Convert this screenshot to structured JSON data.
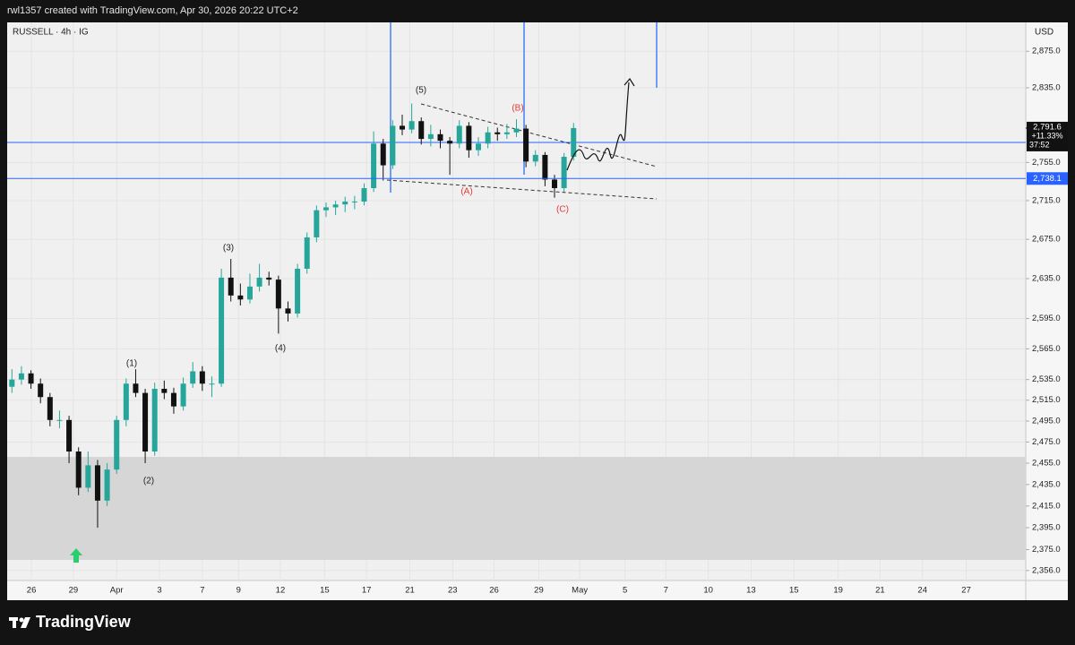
{
  "page": {
    "header": "rwl1357 created with TradingView.com, Apr 30, 2026 20:22 UTC+2",
    "brand": "TradingView"
  },
  "chart_data": {
    "type": "candlestick",
    "title": "RUSSELL · 4h · IG",
    "currency": "USD",
    "log_scale": true,
    "grid": true,
    "up_color": "#26a69a",
    "down_color": "#111111",
    "xlim": [
      0,
      214
    ],
    "ylim": [
      2347,
      2907
    ],
    "x": [
      1,
      3,
      5,
      7,
      9,
      11,
      13,
      15,
      17,
      19,
      21,
      23,
      25,
      27,
      29,
      31,
      33,
      35,
      37,
      39,
      41,
      43,
      45,
      47,
      49,
      51,
      53,
      55,
      57,
      59,
      61,
      63,
      65,
      67,
      69,
      71,
      73,
      75,
      77,
      79,
      81,
      83,
      85,
      87,
      89,
      91,
      93,
      95,
      97,
      99,
      101,
      103,
      105,
      107,
      109,
      111,
      113,
      115,
      117,
      119
    ],
    "open": [
      2528,
      2535,
      2541,
      2531,
      2518,
      2496,
      2496,
      2466,
      2432,
      2453,
      2420,
      2449,
      2496,
      2531,
      2522,
      2466,
      2526,
      2522,
      2509,
      2531,
      2543,
      2531,
      2531,
      2636,
      2618,
      2614,
      2627,
      2636,
      2634,
      2605,
      2600,
      2645,
      2677,
      2705,
      2708,
      2711,
      2714,
      2714,
      2728,
      2775,
      2752,
      2794,
      2790,
      2799,
      2780,
      2785,
      2778,
      2775,
      2794,
      2768,
      2775,
      2787,
      2785,
      2787,
      2791,
      2756,
      2763,
      2737,
      2728,
      2761
    ],
    "high": [
      2545,
      2548,
      2544,
      2536,
      2522,
      2505,
      2500,
      2470,
      2466,
      2458,
      2455,
      2500,
      2536,
      2545,
      2526,
      2532,
      2534,
      2527,
      2537,
      2552,
      2548,
      2538,
      2645,
      2655,
      2630,
      2640,
      2650,
      2642,
      2638,
      2612,
      2650,
      2682,
      2710,
      2713,
      2715,
      2719,
      2720,
      2733,
      2788,
      2780,
      2800,
      2806,
      2818,
      2803,
      2795,
      2790,
      2782,
      2800,
      2798,
      2782,
      2793,
      2792,
      2796,
      2801,
      2795,
      2768,
      2766,
      2742,
      2765,
      2797
    ],
    "low": [
      2522,
      2530,
      2526,
      2512,
      2490,
      2488,
      2455,
      2425,
      2428,
      2395,
      2415,
      2445,
      2490,
      2518,
      2455,
      2462,
      2516,
      2502,
      2505,
      2527,
      2524,
      2518,
      2528,
      2612,
      2608,
      2610,
      2622,
      2628,
      2580,
      2592,
      2596,
      2640,
      2672,
      2698,
      2700,
      2703,
      2706,
      2710,
      2724,
      2736,
      2748,
      2784,
      2786,
      2774,
      2772,
      2770,
      2742,
      2770,
      2760,
      2762,
      2770,
      2778,
      2780,
      2782,
      2750,
      2751,
      2730,
      2718,
      2724,
      2757
    ],
    "close": [
      2535,
      2541,
      2531,
      2518,
      2496,
      2496,
      2466,
      2432,
      2453,
      2420,
      2449,
      2496,
      2531,
      2522,
      2466,
      2526,
      2522,
      2509,
      2531,
      2543,
      2531,
      2531,
      2636,
      2618,
      2614,
      2627,
      2636,
      2634,
      2605,
      2600,
      2645,
      2677,
      2705,
      2708,
      2711,
      2714,
      2714,
      2728,
      2775,
      2752,
      2794,
      2790,
      2799,
      2780,
      2785,
      2778,
      2775,
      2794,
      2768,
      2775,
      2787,
      2785,
      2787,
      2791,
      2756,
      2763,
      2737,
      2728,
      2761,
      2791.6
    ],
    "yticks": [
      {
        "value": 2356,
        "label": "2,356.0"
      },
      {
        "value": 2375,
        "label": "2,375.0"
      },
      {
        "value": 2395,
        "label": "2,395.0"
      },
      {
        "value": 2415,
        "label": "2,415.0"
      },
      {
        "value": 2435,
        "label": "2,435.0"
      },
      {
        "value": 2455,
        "label": "2,455.0"
      },
      {
        "value": 2475,
        "label": "2,475.0"
      },
      {
        "value": 2495,
        "label": "2,495.0"
      },
      {
        "value": 2515,
        "label": "2,515.0"
      },
      {
        "value": 2535,
        "label": "2,535.0"
      },
      {
        "value": 2565,
        "label": "2,565.0"
      },
      {
        "value": 2595,
        "label": "2,595.0"
      },
      {
        "value": 2635,
        "label": "2,635.0"
      },
      {
        "value": 2675,
        "label": "2,675.0"
      },
      {
        "value": 2715,
        "label": "2,715.0"
      },
      {
        "value": 2755,
        "label": "2,755.0"
      },
      {
        "value": 2835,
        "label": "2,835.0"
      },
      {
        "value": 2875,
        "label": "2,875.0"
      }
    ],
    "xticks": [
      {
        "value": 5.1,
        "label": "26"
      },
      {
        "value": 13.9,
        "label": "29"
      },
      {
        "value": 23,
        "label": "Apr"
      },
      {
        "value": 32,
        "label": "3"
      },
      {
        "value": 41,
        "label": "7"
      },
      {
        "value": 48.6,
        "label": "9"
      },
      {
        "value": 57.4,
        "label": "12"
      },
      {
        "value": 66.7,
        "label": "15"
      },
      {
        "value": 75.5,
        "label": "17"
      },
      {
        "value": 84.6,
        "label": "21"
      },
      {
        "value": 93.6,
        "label": "23"
      },
      {
        "value": 102.3,
        "label": "26"
      },
      {
        "value": 111.7,
        "label": "29"
      },
      {
        "value": 120.3,
        "label": "May"
      },
      {
        "value": 129.8,
        "label": "5"
      },
      {
        "value": 138.4,
        "label": "7"
      },
      {
        "value": 147.3,
        "label": "10"
      },
      {
        "value": 156.3,
        "label": "13"
      },
      {
        "value": 165.3,
        "label": "15"
      },
      {
        "value": 174.6,
        "label": "19"
      },
      {
        "value": 183.4,
        "label": "21"
      },
      {
        "value": 192.3,
        "label": "24"
      },
      {
        "value": 201.5,
        "label": "27"
      }
    ],
    "last_price": {
      "value": 2791.6,
      "label": "2,791.6",
      "change": "+11.33%",
      "countdown": "37:52"
    },
    "level": {
      "value": 2738.1,
      "label": "2,738.1"
    },
    "annotations": [
      "(1)",
      "(2)",
      "(3)",
      "(4)",
      "(5)",
      "(A)",
      "(B)",
      "(C)"
    ]
  }
}
